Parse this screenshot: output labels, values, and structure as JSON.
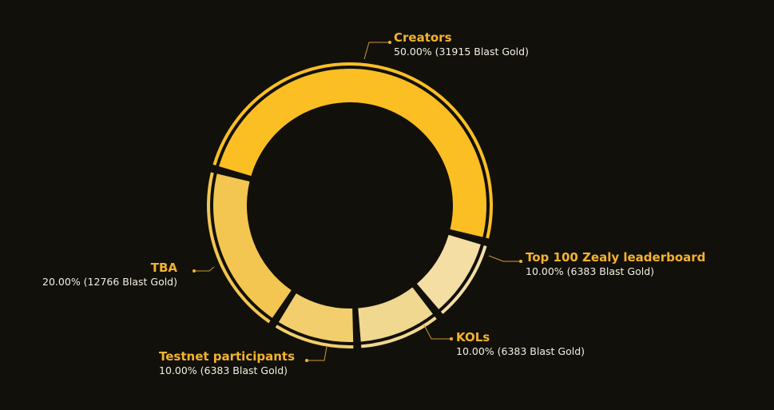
{
  "chart_data": {
    "type": "pie",
    "variant": "donut",
    "title": "",
    "unit": "Blast Gold",
    "slices": [
      {
        "name": "Creators",
        "percent": 50,
        "value": 31915,
        "value_label": "50.00% (31915 Blast Gold)",
        "color": "#fbbf24"
      },
      {
        "name": "Top 100 Zealy leaderboard",
        "percent": 10,
        "value": 6383,
        "value_label": "10.00% (6383 Blast Gold)",
        "color": "#f4dea4"
      },
      {
        "name": "KOLs",
        "percent": 10,
        "value": 6383,
        "value_label": "10.00% (6383 Blast Gold)",
        "color": "#f1d890"
      },
      {
        "name": "Testnet participants",
        "percent": 10,
        "value": 6383,
        "value_label": "10.00% (6383 Blast Gold)",
        "color": "#f2cf6c"
      },
      {
        "name": "TBA",
        "percent": 20,
        "value": 12766,
        "value_label": "20.00% (12766 Blast Gold)",
        "color": "#f2c650"
      }
    ],
    "start_angle": "left, going clockwise",
    "legend": "callout labels"
  },
  "colors": {
    "background": "#12100a",
    "label_name": "#f3b32e",
    "label_value": "#f4efe2",
    "callout_line": "#c99a3a"
  }
}
